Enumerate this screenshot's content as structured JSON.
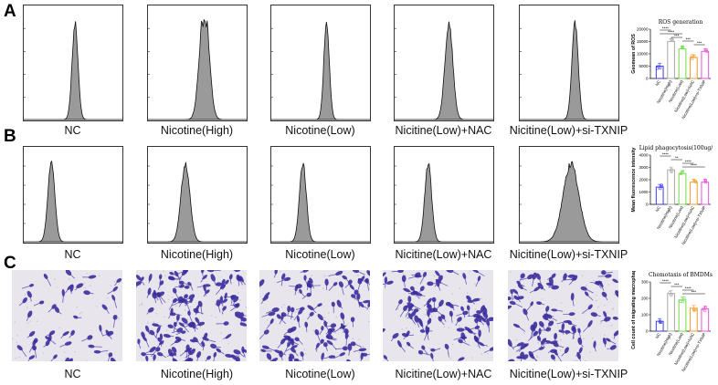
{
  "panels": [
    {
      "id": "A",
      "letter": "A",
      "kind": "histogram",
      "groups": [
        "NC",
        "Nicotine(High)",
        "Nicotine(Low)",
        "Nicitine(Low)+NAC",
        "Nicitine(Low)+si-TXNIP"
      ],
      "peak_shape": [
        {
          "peak": 0.52,
          "width": 0.03,
          "shoulder": 0
        },
        {
          "peak": 0.58,
          "width": 0.045,
          "shoulder": 0.3
        },
        {
          "peak": 0.56,
          "width": 0.028,
          "shoulder": 0
        },
        {
          "peak": 0.55,
          "width": 0.04,
          "shoulder": 0
        },
        {
          "peak": 0.56,
          "width": 0.032,
          "shoulder": 0
        }
      ]
    },
    {
      "id": "B",
      "letter": "B",
      "kind": "histogram",
      "groups": [
        "NC",
        "Nicotine(High)",
        "Nicotine(Low)",
        "Nicitine(Low)+NAC",
        "Nicitine(Low)+si-TXNIP"
      ],
      "peak_shape": [
        {
          "peak": 0.28,
          "width": 0.035,
          "shoulder": 0
        },
        {
          "peak": 0.38,
          "width": 0.045,
          "shoulder": 0
        },
        {
          "peak": 0.32,
          "width": 0.035,
          "shoulder": 0
        },
        {
          "peak": 0.34,
          "width": 0.035,
          "shoulder": 0
        },
        {
          "peak": 0.52,
          "width": 0.08,
          "shoulder": 0
        }
      ]
    },
    {
      "id": "C",
      "letter": "C",
      "kind": "micrograph",
      "groups": [
        "NC",
        "Nicotine(High)",
        "Nicotine(Low)",
        "Nicitine(Low)+NAC",
        "Nicitine(Low)+si-TXNIP"
      ],
      "cell_density": [
        45,
        130,
        105,
        95,
        95
      ]
    }
  ],
  "chart_data": [
    {
      "type": "bar",
      "panel": "A",
      "title": "ROS generation",
      "ylabel": "Geomean of ROS",
      "categories": [
        "NC",
        "Nicotine(High)",
        "Nicotine(Low)",
        "Nicotine(Low)+NAC",
        "Nicotine(Low)+si-TXNIP"
      ],
      "values": [
        5000,
        15000,
        12000,
        8500,
        11000
      ],
      "ylim": [
        0,
        20000
      ],
      "yticks": [
        "0",
        "5000",
        "10000",
        "15000",
        "20000"
      ],
      "bar_colors": [
        "#4a4af0",
        "#b0b0b0",
        "#7ddc5a",
        "#f3a23a",
        "#e860d8"
      ],
      "significance": [
        "****",
        "****",
        "***",
        "***",
        "***"
      ]
    },
    {
      "type": "bar",
      "panel": "B",
      "title": "Lipid phagocytosis(100ug/ml)",
      "ylabel": "Mean fluorescence intensity",
      "categories": [
        "NC",
        "Nicotine(High)",
        "Nicotine(Low)",
        "Nicotine(Low)+NAC",
        "Nicotine(Low)+si-TXNIP"
      ],
      "values": [
        1400,
        2800,
        2500,
        1800,
        1800
      ],
      "ylim": [
        0,
        4000
      ],
      "yticks": [
        "0",
        "1000",
        "2000",
        "3000",
        "4000"
      ],
      "bar_colors": [
        "#4a4af0",
        "#b0b0b0",
        "#7ddc5a",
        "#f3a23a",
        "#e860d8"
      ],
      "significance": [
        "****",
        "**",
        "****",
        "****"
      ]
    },
    {
      "type": "bar",
      "panel": "C",
      "title": "Chemotaxis of BMDMs",
      "ylabel": "Cell count of migrating macrophages",
      "categories": [
        "NC",
        "Nicotine(High)",
        "Nicotine(Low)",
        "Nicotine(Low)+NAC",
        "Nicotine(Low)+si-TXNIP"
      ],
      "values": [
        60,
        230,
        190,
        140,
        135
      ],
      "ylim": [
        0,
        300
      ],
      "yticks": [
        "0",
        "100",
        "200",
        "300"
      ],
      "bar_colors": [
        "#4a4af0",
        "#b0b0b0",
        "#7ddc5a",
        "#f3a23a",
        "#e860d8"
      ],
      "significance": [
        "****",
        "***",
        "****",
        "***"
      ]
    }
  ]
}
